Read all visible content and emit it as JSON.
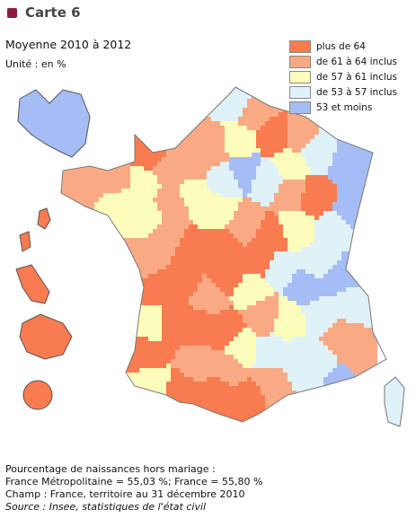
{
  "header": {
    "title": "Carte 6",
    "subtitle": "Moyenne 2010 à 2012",
    "unit": "Unité : en %"
  },
  "legend": [
    {
      "label": "plus de 64",
      "color": "#f97b50"
    },
    {
      "label": "de 61 à 64 inclus",
      "color": "#f9aa85"
    },
    {
      "label": "de 57 à 61 inclus",
      "color": "#fdfdbb"
    },
    {
      "label": "de 53 à 57 inclus",
      "color": "#def2f8"
    },
    {
      "label": "53 et moins",
      "color": "#a5bdf4"
    }
  ],
  "footer": {
    "lines": [
      "Pourcentage de naissances hors mariage :",
      "France Métropolitaine = 55,03 %; France = 55,80 %",
      "Champ : France, territoire au 31 décembre 2010"
    ],
    "source": "Source : Insee, statistiques de l'état civil"
  }
}
